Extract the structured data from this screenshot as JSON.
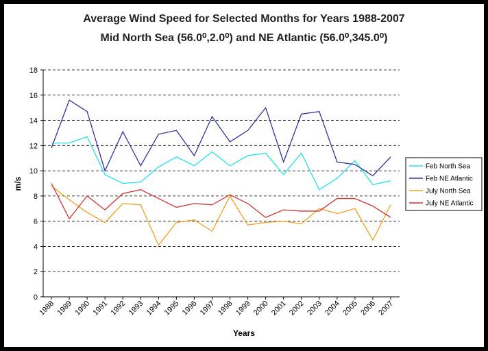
{
  "chart_data": {
    "type": "line",
    "title": "Average Wind Speed for Selected Months for Years 1988-2007",
    "subtitle": "Mid North Sea (56.0⁰,2.0⁰) and NE Atlantic (56.0⁰,345.0⁰)",
    "x_label": "Years",
    "y_label": "m/s",
    "x": [
      1988,
      1989,
      1990,
      1991,
      1992,
      1993,
      1994,
      1995,
      1996,
      1997,
      1998,
      1999,
      2000,
      2001,
      2002,
      2003,
      2004,
      2005,
      2006,
      2007
    ],
    "xlim": [
      1988,
      2007
    ],
    "ylim": [
      0,
      18
    ],
    "yticks": [
      0,
      2,
      4,
      6,
      8,
      10,
      12,
      14,
      16,
      18
    ],
    "grid": true,
    "legend": "right",
    "series": [
      {
        "name": "Feb North Sea",
        "color": "#22e0ee",
        "values": [
          12.2,
          12.2,
          12.7,
          9.7,
          9.0,
          9.1,
          10.3,
          11.1,
          10.4,
          11.5,
          10.4,
          11.2,
          11.4,
          9.7,
          11.4,
          8.5,
          9.4,
          10.8,
          8.9,
          9.2
        ]
      },
      {
        "name": "Feb NE Atlantic",
        "color": "#333399",
        "values": [
          11.8,
          15.6,
          14.7,
          10.0,
          13.1,
          10.4,
          12.9,
          13.2,
          11.2,
          14.3,
          12.3,
          13.2,
          15.0,
          10.7,
          14.5,
          14.7,
          10.7,
          10.5,
          9.6,
          11.1
        ]
      },
      {
        "name": "July North Sea",
        "color": "#f0a020",
        "values": [
          8.8,
          7.7,
          6.7,
          5.9,
          7.4,
          7.3,
          4.1,
          5.9,
          6.1,
          5.2,
          8.0,
          5.7,
          5.9,
          6.0,
          5.8,
          7.0,
          6.6,
          7.0,
          4.5,
          7.3
        ]
      },
      {
        "name": "July NE Atlantic",
        "color": "#cc3333",
        "values": [
          9.0,
          6.2,
          8.0,
          6.9,
          8.2,
          8.5,
          7.8,
          7.1,
          7.4,
          7.3,
          8.1,
          7.4,
          6.3,
          6.9,
          6.8,
          6.8,
          7.8,
          7.8,
          7.2,
          6.3
        ]
      }
    ]
  }
}
